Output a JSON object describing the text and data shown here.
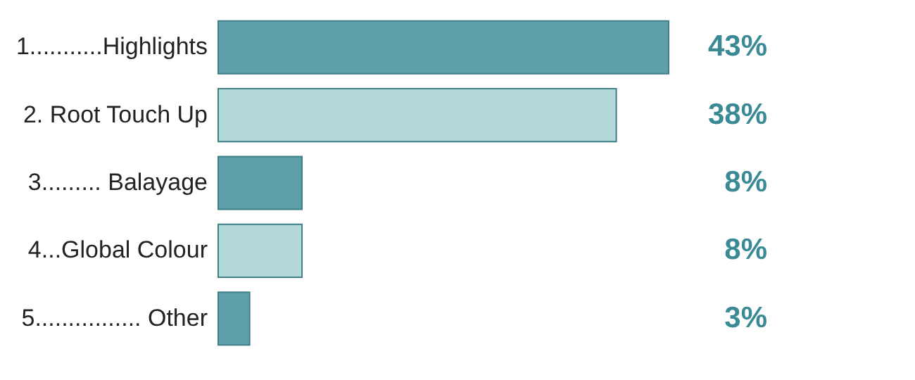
{
  "chart_data": {
    "type": "bar",
    "orientation": "horizontal",
    "categories": [
      "1...........Highlights",
      "2. Root Touch Up",
      "3......... Balayage",
      "4...Global Colour",
      "5................ Other"
    ],
    "values": [
      43,
      38,
      8,
      8,
      3
    ],
    "colors": [
      "#5f9fa9",
      "#b3d8d8",
      "#5f9fa9",
      "#b3d8d8",
      "#5f9fa9"
    ],
    "value_labels": [
      "43%",
      "38%",
      "8%",
      "8%",
      "3%"
    ]
  }
}
